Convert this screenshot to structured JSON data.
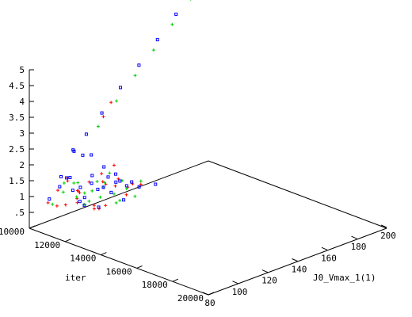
{
  "chart_data": {
    "type": "scatter3d",
    "title": "",
    "xlabel": "iter",
    "ylabel": "J0_Vmax_1(1)",
    "zlabel": "",
    "xlim": [
      10000,
      20000
    ],
    "ylim": [
      80,
      200
    ],
    "zlim": [
      0,
      5
    ],
    "x_ticks": [
      10000,
      12000,
      14000,
      16000,
      18000,
      20000
    ],
    "x_tick_labels": [
      "10000",
      "12000",
      "14000",
      "16000",
      "18000",
      "20000"
    ],
    "y_ticks": [
      80,
      100,
      120,
      140,
      160,
      180,
      200
    ],
    "y_tick_labels": [
      "80",
      "100",
      "120",
      "140",
      "160",
      "180",
      "200"
    ],
    "z_ticks": [
      0.5,
      1,
      1.5,
      2,
      2.5,
      3,
      3.5,
      4,
      4.5,
      5
    ],
    "z_tick_labels": [
      ".5",
      "1",
      "1.5",
      "2",
      "2.5",
      "3",
      "3.5",
      "4",
      "4.5",
      "5"
    ],
    "grid": false,
    "legend": "none",
    "series": [
      {
        "color": "#ff0000",
        "marker": "plus",
        "points": [
          [
            10050,
            92,
            0.6
          ],
          [
            10100,
            98,
            0.9
          ],
          [
            10150,
            104,
            1.1
          ],
          [
            10200,
            110,
            0.7
          ],
          [
            10300,
            95,
            0.5
          ],
          [
            10400,
            101,
            1.3
          ],
          [
            10500,
            107,
            0.8
          ],
          [
            10600,
            113,
            1.0
          ],
          [
            10700,
            96,
            0.6
          ],
          [
            10800,
            119,
            1.2
          ],
          [
            10900,
            103,
            0.9
          ],
          [
            11000,
            125,
            1.4
          ],
          [
            11100,
            99,
            0.7
          ],
          [
            11200,
            115,
            1.1
          ],
          [
            11300,
            108,
            0.5
          ],
          [
            11400,
            121,
            0.9
          ],
          [
            11500,
            94,
            1.0
          ],
          [
            11600,
            127,
            0.8
          ],
          [
            11700,
            111,
            1.2
          ],
          [
            11800,
            102,
            0.6
          ],
          [
            11900,
            117,
            1.3
          ],
          [
            12000,
            131,
            0.9
          ],
          [
            12100,
            106,
            0.7
          ],
          [
            12200,
            123,
            1.1
          ],
          [
            12400,
            98,
            0.8
          ],
          [
            12600,
            114,
            1.0
          ],
          [
            10150,
            128,
            2.7
          ],
          [
            10250,
            132,
            3.1
          ]
        ]
      },
      {
        "color": "#00cc00",
        "marker": "plus",
        "points": [
          [
            10050,
            95,
            0.5
          ],
          [
            10150,
            101,
            0.8
          ],
          [
            10250,
            107,
            1.0
          ],
          [
            10350,
            113,
            0.6
          ],
          [
            10450,
            98,
            1.2
          ],
          [
            10550,
            119,
            0.9
          ],
          [
            10650,
            104,
            0.7
          ],
          [
            10750,
            125,
            1.1
          ],
          [
            10850,
            110,
            0.5
          ],
          [
            10950,
            131,
            0.8
          ],
          [
            11050,
            100,
            1.3
          ],
          [
            11150,
            116,
            0.9
          ],
          [
            11250,
            122,
            0.6
          ],
          [
            11350,
            106,
            1.0
          ],
          [
            11450,
            128,
            0.7
          ],
          [
            11550,
            112,
            1.2
          ],
          [
            11650,
            97,
            0.8
          ],
          [
            11750,
            134,
            0.9
          ],
          [
            11900,
            118,
            0.6
          ],
          [
            12050,
            103,
            1.0
          ],
          [
            12250,
            124,
            0.7
          ],
          [
            12450,
            109,
            0.8
          ],
          [
            10030,
            126,
            2.4
          ],
          [
            10060,
            138,
            3.0
          ],
          [
            10100,
            150,
            3.6
          ],
          [
            10140,
            162,
            4.2
          ],
          [
            10180,
            174,
            4.8
          ],
          [
            10220,
            186,
            5.4
          ],
          [
            10260,
            196,
            5.9
          ]
        ]
      },
      {
        "color": "#0000ff",
        "marker": "box",
        "points": [
          [
            10040,
            93,
            0.7
          ],
          [
            10120,
            99,
            1.0
          ],
          [
            10200,
            105,
            1.2
          ],
          [
            10280,
            111,
            0.8
          ],
          [
            10360,
            97,
            1.4
          ],
          [
            10440,
            117,
            1.1
          ],
          [
            10520,
            103,
            0.9
          ],
          [
            10600,
            123,
            1.3
          ],
          [
            10680,
            109,
            0.6
          ],
          [
            10760,
            129,
            1.0
          ],
          [
            10840,
            95,
            1.5
          ],
          [
            10920,
            115,
            0.8
          ],
          [
            11000,
            121,
            1.1
          ],
          [
            11080,
            101,
            0.7
          ],
          [
            11160,
            127,
            0.9
          ],
          [
            11240,
            107,
            1.2
          ],
          [
            11320,
            133,
            0.8
          ],
          [
            11400,
            113,
            1.0
          ],
          [
            11500,
            99,
            0.7
          ],
          [
            11600,
            119,
            1.1
          ],
          [
            11700,
            125,
            0.9
          ],
          [
            11800,
            105,
            0.6
          ],
          [
            11900,
            131,
            0.8
          ],
          [
            12000,
            111,
            1.0
          ],
          [
            12200,
            117,
            0.7
          ],
          [
            12400,
            136,
            0.9
          ],
          [
            10010,
            110,
            1.9
          ],
          [
            10030,
            118,
            2.3
          ],
          [
            10070,
            128,
            2.8
          ],
          [
            10110,
            140,
            3.4
          ],
          [
            10150,
            152,
            3.9
          ],
          [
            10190,
            164,
            4.5
          ],
          [
            10230,
            176,
            5.1
          ],
          [
            10270,
            188,
            5.7
          ],
          [
            10080,
            115,
            1.7
          ],
          [
            10120,
            108,
            2.0
          ],
          [
            10060,
            121,
            1.6
          ]
        ]
      }
    ]
  }
}
